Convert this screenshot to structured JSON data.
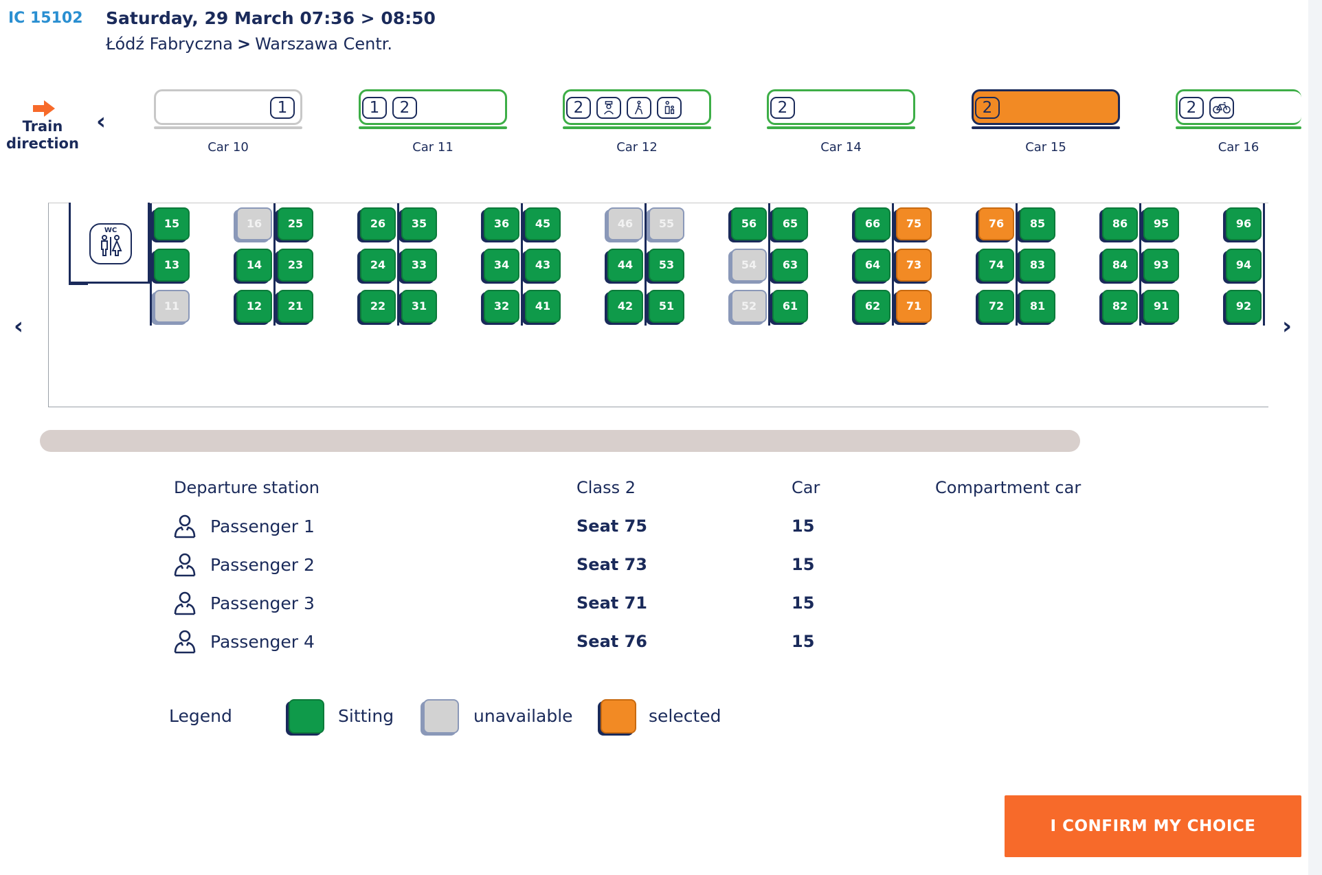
{
  "header": {
    "train_number": "IC 15102",
    "date_time": "Saturday, 29 March 07:36 > 08:50",
    "from": "Łódź Fabryczna",
    "route_sep": ">",
    "to": "Warszawa Centr."
  },
  "direction": {
    "label_line1": "Train",
    "label_line2": "direction",
    "color": "#f76a2a"
  },
  "nav": {
    "prev": "‹",
    "next": "›"
  },
  "cars": [
    {
      "label": "Car 10",
      "classes": [
        "1"
      ],
      "amenities": [],
      "state": "unavailable"
    },
    {
      "label": "Car 11",
      "classes": [
        "1",
        "2"
      ],
      "amenities": [],
      "state": "available"
    },
    {
      "label": "Car 12",
      "classes": [
        "2"
      ],
      "amenities": [
        "conductor-icon",
        "wheelchair-icon",
        "family-icon"
      ],
      "state": "available"
    },
    {
      "label": "Car 14",
      "classes": [
        "2"
      ],
      "amenities": [],
      "state": "available"
    },
    {
      "label": "Car 15",
      "classes": [
        "2"
      ],
      "amenities": [],
      "state": "selected"
    },
    {
      "label": "Car 16",
      "classes": [
        "2"
      ],
      "amenities": [
        "bicycle-icon"
      ],
      "state": "available"
    }
  ],
  "wc_label": "WC",
  "seats": {
    "col_a_top": [
      "15",
      "16",
      "26",
      "36",
      "46",
      "56",
      "66",
      "76",
      "86",
      "96"
    ],
    "col_b_top": [
      "25",
      "35",
      "45",
      "55",
      "65",
      "75",
      "85",
      "95"
    ],
    "rows": [
      [
        "15",
        "16",
        "25",
        "26",
        "35",
        "36",
        "45",
        "46",
        "55",
        "56",
        "65",
        "66",
        "75",
        "76",
        "85",
        "86",
        "95",
        "96"
      ],
      [
        "13",
        "14",
        "23",
        "24",
        "33",
        "34",
        "43",
        "44",
        "53",
        "54",
        "63",
        "64",
        "73",
        "74",
        "83",
        "84",
        "93",
        "94"
      ],
      [
        "11",
        "12",
        "21",
        "22",
        "31",
        "32",
        "41",
        "42",
        "51",
        "52",
        "61",
        "62",
        "71",
        "72",
        "81",
        "82",
        "91",
        "92"
      ]
    ],
    "unavailable": [
      "11",
      "16",
      "46",
      "55",
      "54",
      "52"
    ],
    "selected": [
      "75",
      "73",
      "71",
      "76"
    ]
  },
  "summary": {
    "headers": {
      "departure": "Departure station",
      "class": "Class 2",
      "car": "Car",
      "car_type": "Compartment car"
    },
    "passengers": [
      {
        "name": "Passenger 1",
        "seat": "Seat 75",
        "car": "15"
      },
      {
        "name": "Passenger 2",
        "seat": "Seat 73",
        "car": "15"
      },
      {
        "name": "Passenger 3",
        "seat": "Seat 71",
        "car": "15"
      },
      {
        "name": "Passenger 4",
        "seat": "Seat 76",
        "car": "15"
      }
    ]
  },
  "legend": {
    "title": "Legend",
    "sitting": "Sitting",
    "unavailable": "unavailable",
    "selected": "selected"
  },
  "colors": {
    "available": "#0f9a4a",
    "unavailable": "#d2d2d2",
    "selected": "#f28a24",
    "navy": "#1a2a5a",
    "confirm": "#f76a2a"
  },
  "confirm_label": "I CONFIRM MY CHOICE"
}
